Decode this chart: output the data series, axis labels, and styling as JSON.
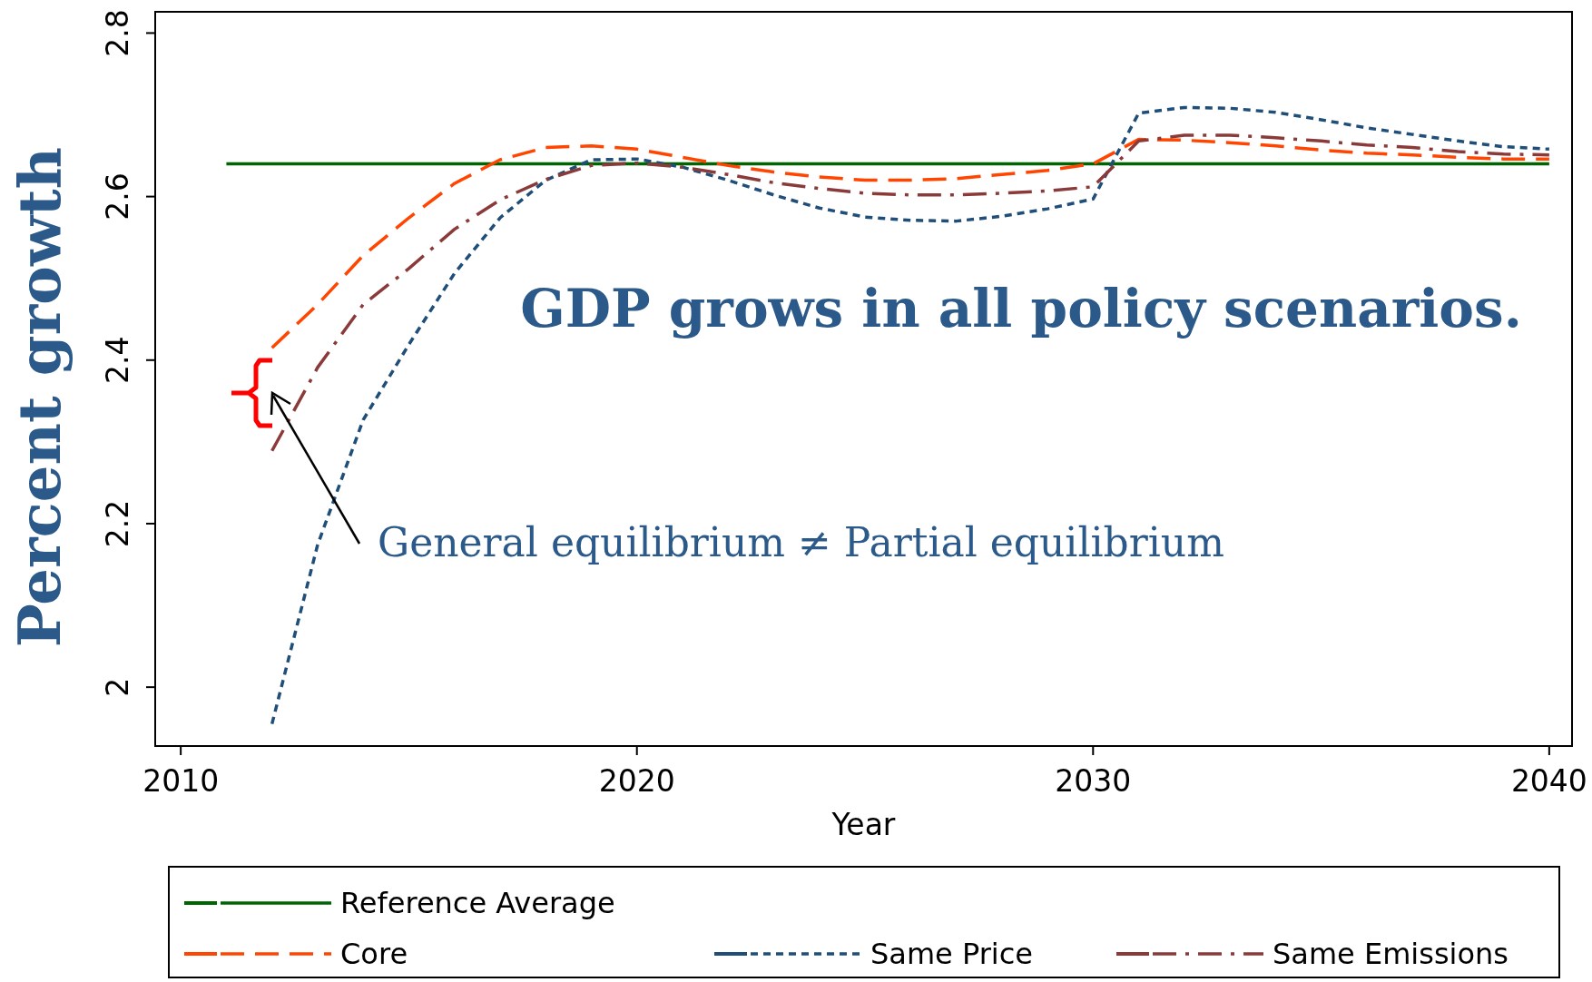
{
  "chart_data": {
    "type": "line",
    "ylabel": "Percent growth",
    "xlabel": "Year",
    "xlim": [
      2009.44,
      2040.5
    ],
    "xticks": [
      2010,
      2020,
      2030,
      2040
    ],
    "ylim": [
      1.928,
      2.826
    ],
    "yticks": [
      2,
      2.2,
      2.4,
      2.6,
      2.8
    ],
    "grid": false,
    "legend": "bottom",
    "marker": "none",
    "x": [
      2012,
      2013,
      2014,
      2015,
      2016,
      2017,
      2018,
      2019,
      2020,
      2021,
      2022,
      2023,
      2024,
      2025,
      2026,
      2027,
      2028,
      2029,
      2030,
      2031,
      2032,
      2033,
      2034,
      2035,
      2036,
      2037,
      2038,
      2039,
      2040
    ],
    "series": [
      {
        "name": "Reference Average",
        "color": "#006400",
        "line_style": "solid",
        "x": [
          2011,
          2040
        ],
        "values": [
          2.64,
          2.64
        ]
      },
      {
        "name": "Core",
        "color": "#ff4500",
        "line_style": "dashed",
        "values": [
          2.415,
          2.468,
          2.528,
          2.574,
          2.616,
          2.645,
          2.66,
          2.662,
          2.658,
          2.648,
          2.638,
          2.63,
          2.624,
          2.62,
          2.62,
          2.622,
          2.627,
          2.632,
          2.64,
          2.67,
          2.669,
          2.666,
          2.662,
          2.657,
          2.653,
          2.651,
          2.648,
          2.646,
          2.646
        ]
      },
      {
        "name": "Same Price",
        "color": "#1f4e79",
        "line_style": "dotted",
        "values": [
          1.955,
          2.174,
          2.327,
          2.419,
          2.506,
          2.574,
          2.62,
          2.645,
          2.646,
          2.636,
          2.62,
          2.602,
          2.586,
          2.575,
          2.571,
          2.57,
          2.576,
          2.585,
          2.597,
          2.702,
          2.709,
          2.708,
          2.703,
          2.694,
          2.684,
          2.676,
          2.668,
          2.661,
          2.658
        ]
      },
      {
        "name": "Same Emissions",
        "color": "#8b3a3a",
        "line_style": "dashdot",
        "values": [
          2.289,
          2.391,
          2.468,
          2.512,
          2.56,
          2.596,
          2.621,
          2.638,
          2.641,
          2.636,
          2.627,
          2.617,
          2.61,
          2.604,
          2.602,
          2.602,
          2.604,
          2.607,
          2.612,
          2.668,
          2.675,
          2.675,
          2.672,
          2.668,
          2.663,
          2.66,
          2.655,
          2.652,
          2.651
        ]
      }
    ],
    "annotations": [
      "GDP grows in all policy scenarios.",
      "General equilibrium ≠ Partial equilibrium"
    ]
  }
}
